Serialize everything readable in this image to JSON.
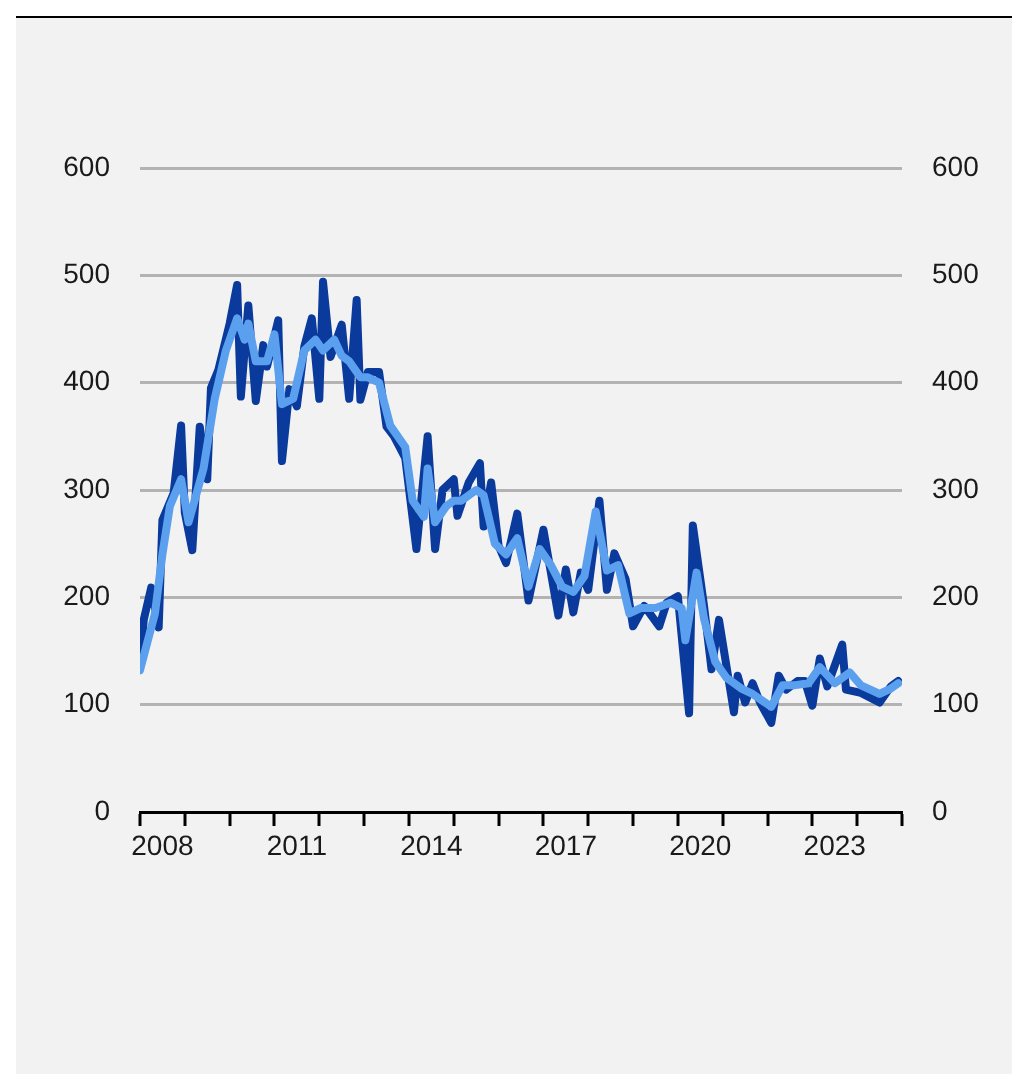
{
  "chart_data": {
    "type": "line",
    "xlim": [
      "2008-01",
      "2025-01"
    ],
    "xticks": [
      {
        "value": "2008-01",
        "label": null
      },
      {
        "value": "2008-07",
        "label": "2008"
      },
      {
        "value": "2009-01",
        "label": null
      },
      {
        "value": "2010-01",
        "label": null
      },
      {
        "value": "2011-01",
        "label": null
      },
      {
        "value": "2011-07",
        "label": "2011"
      },
      {
        "value": "2012-01",
        "label": null
      },
      {
        "value": "2013-01",
        "label": null
      },
      {
        "value": "2014-01",
        "label": null
      },
      {
        "value": "2014-07",
        "label": "2014"
      },
      {
        "value": "2015-01",
        "label": null
      },
      {
        "value": "2016-01",
        "label": null
      },
      {
        "value": "2017-01",
        "label": null
      },
      {
        "value": "2017-07",
        "label": "2017"
      },
      {
        "value": "2018-01",
        "label": null
      },
      {
        "value": "2019-01",
        "label": null
      },
      {
        "value": "2020-01",
        "label": null
      },
      {
        "value": "2020-07",
        "label": "2020"
      },
      {
        "value": "2021-01",
        "label": null
      },
      {
        "value": "2022-01",
        "label": null
      },
      {
        "value": "2023-01",
        "label": null
      },
      {
        "value": "2023-07",
        "label": "2023"
      },
      {
        "value": "2024-01",
        "label": null
      },
      {
        "value": "2025-01",
        "label": null
      }
    ],
    "ylim": [
      0,
      600
    ],
    "yticks": [
      0,
      100,
      200,
      300,
      400,
      500,
      600
    ],
    "y2lim": [
      0,
      600
    ],
    "y2ticks": [
      0,
      100,
      200,
      300,
      400,
      500,
      600
    ],
    "grid": "y",
    "series": [
      {
        "color": "#0a3a9c",
        "x": [
          "2008-01",
          "2008-02",
          "2008-04",
          "2008-06",
          "2008-07",
          "2008-10",
          "2008-12",
          "2009-01",
          "2009-03",
          "2009-05",
          "2009-07",
          "2009-08",
          "2009-10",
          "2010-01",
          "2010-03",
          "2010-04",
          "2010-06",
          "2010-08",
          "2010-10",
          "2010-11",
          "2011-02",
          "2011-03",
          "2011-05",
          "2011-07",
          "2011-09",
          "2011-11",
          "2012-01",
          "2012-02",
          "2012-04",
          "2012-07",
          "2012-09",
          "2012-11",
          "2012-12",
          "2013-02",
          "2013-05",
          "2013-07",
          "2013-09",
          "2013-12",
          "2014-03",
          "2014-06",
          "2014-08",
          "2014-10",
          "2015-01",
          "2015-02",
          "2015-05",
          "2015-08",
          "2015-09",
          "2015-11",
          "2016-01",
          "2016-03",
          "2016-06",
          "2016-09",
          "2017-01",
          "2017-03",
          "2017-05",
          "2017-07",
          "2017-09",
          "2017-11",
          "2018-01",
          "2018-04",
          "2018-06",
          "2018-08",
          "2018-11",
          "2019-01",
          "2019-04",
          "2019-08",
          "2019-10",
          "2020-01",
          "2020-04",
          "2020-05",
          "2020-08",
          "2020-10",
          "2020-12",
          "2021-02",
          "2021-04",
          "2021-05",
          "2021-07",
          "2021-09",
          "2021-11",
          "2022-02",
          "2022-04",
          "2022-06",
          "2022-09",
          "2022-11",
          "2023-01",
          "2023-03",
          "2023-05",
          "2023-09",
          "2023-10",
          "2024-02",
          "2024-07",
          "2024-10",
          "2024-12"
        ],
        "values": [
          136,
          179,
          209,
          172,
          272,
          297,
          360,
          279,
          244,
          359,
          310,
          395,
          412,
          455,
          491,
          387,
          472,
          383,
          435,
          415,
          458,
          327,
          394,
          378,
          434,
          460,
          385,
          494,
          424,
          454,
          385,
          477,
          384,
          410,
          410,
          359,
          350,
          330,
          245,
          350,
          245,
          300,
          310,
          276,
          307,
          325,
          266,
          307,
          248,
          232,
          278,
          197,
          263,
          223,
          183,
          226,
          186,
          223,
          207,
          290,
          207,
          241,
          217,
          173,
          192,
          173,
          195,
          201,
          92,
          267,
          192,
          133,
          179,
          136,
          93,
          127,
          102,
          120,
          102,
          83,
          127,
          114,
          122,
          122,
          99,
          143,
          117,
          156,
          114,
          111,
          102,
          117,
          122
        ]
      },
      {
        "color": "#5aa0ef",
        "x": [
          "2008-01",
          "2008-05",
          "2008-07",
          "2008-09",
          "2008-12",
          "2009-02",
          "2009-06",
          "2009-09",
          "2009-12",
          "2010-03",
          "2010-05",
          "2010-06",
          "2010-08",
          "2010-11",
          "2011-01",
          "2011-03",
          "2011-06",
          "2011-09",
          "2011-12",
          "2012-02",
          "2012-05",
          "2012-07",
          "2012-09",
          "2012-12",
          "2013-02",
          "2013-05",
          "2013-08",
          "2013-12",
          "2014-02",
          "2014-05",
          "2014-06",
          "2014-08",
          "2014-11",
          "2015-01",
          "2015-03",
          "2015-07",
          "2015-09",
          "2015-12",
          "2016-03",
          "2016-06",
          "2016-09",
          "2016-12",
          "2017-03",
          "2017-06",
          "2017-09",
          "2017-12",
          "2018-03",
          "2018-06",
          "2018-09",
          "2018-12",
          "2019-03",
          "2019-07",
          "2019-11",
          "2020-02",
          "2020-03",
          "2020-06",
          "2020-08",
          "2020-11",
          "2021-02",
          "2021-06",
          "2021-09",
          "2022-02",
          "2022-05",
          "2022-08",
          "2022-12",
          "2023-03",
          "2023-07",
          "2023-11",
          "2024-02",
          "2024-07",
          "2024-10",
          "2024-12"
        ],
        "values": [
          132,
          185,
          240,
          285,
          310,
          270,
          320,
          385,
          430,
          460,
          440,
          455,
          420,
          420,
          445,
          380,
          385,
          430,
          440,
          430,
          440,
          425,
          420,
          405,
          405,
          400,
          360,
          340,
          290,
          275,
          320,
          270,
          285,
          290,
          290,
          300,
          295,
          250,
          240,
          255,
          210,
          245,
          230,
          210,
          205,
          220,
          280,
          225,
          230,
          185,
          190,
          190,
          195,
          190,
          160,
          223,
          180,
          140,
          125,
          115,
          110,
          98,
          118,
          118,
          120,
          135,
          120,
          130,
          118,
          110,
          115,
          120
        ]
      }
    ]
  }
}
